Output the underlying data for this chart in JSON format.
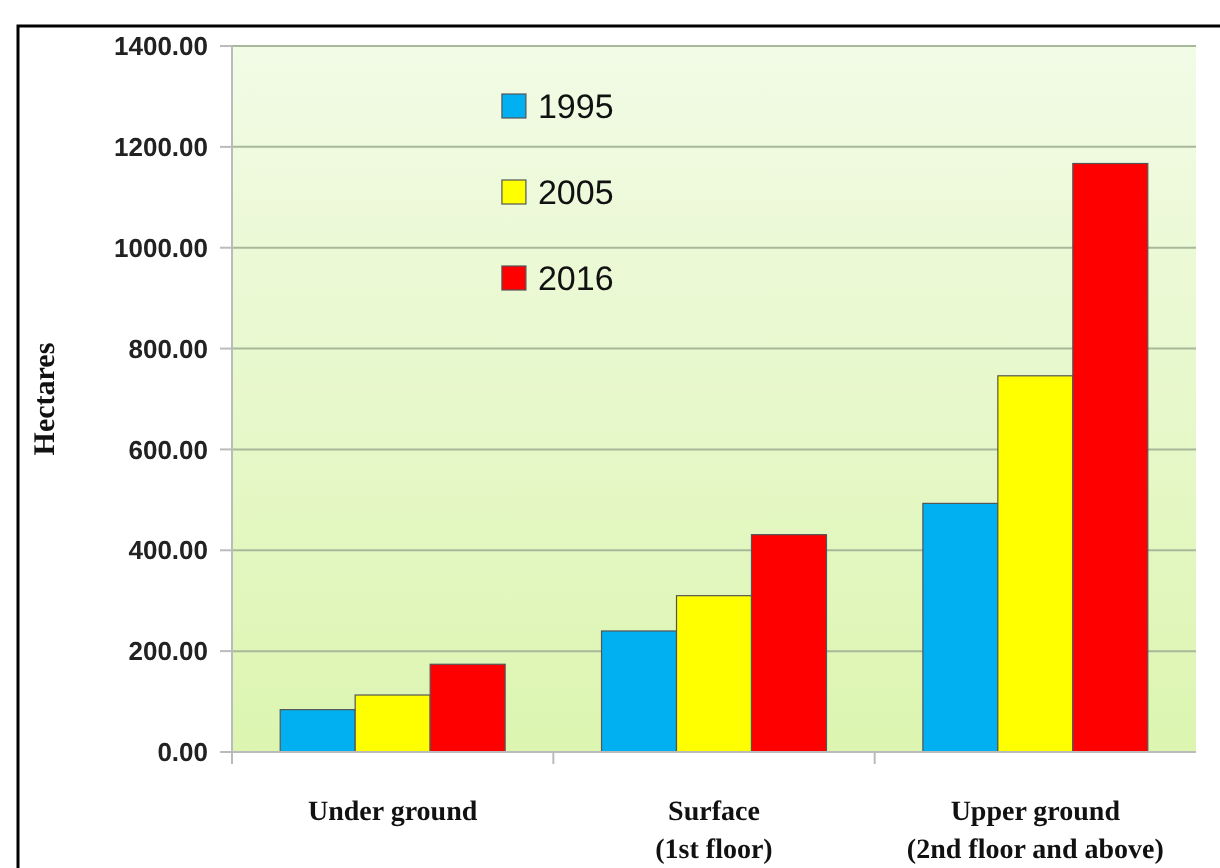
{
  "chart_data": {
    "type": "bar",
    "ylabel": "Hectares",
    "categories": [
      "Under ground",
      "Surface (1st floor)",
      "Upper ground (2nd floor and above)"
    ],
    "series": [
      {
        "name": "1995",
        "color": "#00b0f0",
        "values": [
          84,
          240,
          493
        ]
      },
      {
        "name": "2005",
        "color": "#ffff00",
        "values": [
          113,
          310,
          746
        ]
      },
      {
        "name": "2016",
        "color": "#ff0000",
        "values": [
          174,
          431,
          1167
        ]
      }
    ],
    "ylim": [
      0,
      1400
    ],
    "yticks": [
      {
        "value": 0,
        "label": "0.00"
      },
      {
        "value": 200,
        "label": "200.00"
      },
      {
        "value": 400,
        "label": "400.00"
      },
      {
        "value": 600,
        "label": "600.00"
      },
      {
        "value": 800,
        "label": "800.00"
      },
      {
        "value": 1000,
        "label": "1000.00"
      },
      {
        "value": 1200,
        "label": "1200.00"
      },
      {
        "value": 1400,
        "label": "1400.00"
      }
    ],
    "grid": "y",
    "legend": "top left"
  }
}
